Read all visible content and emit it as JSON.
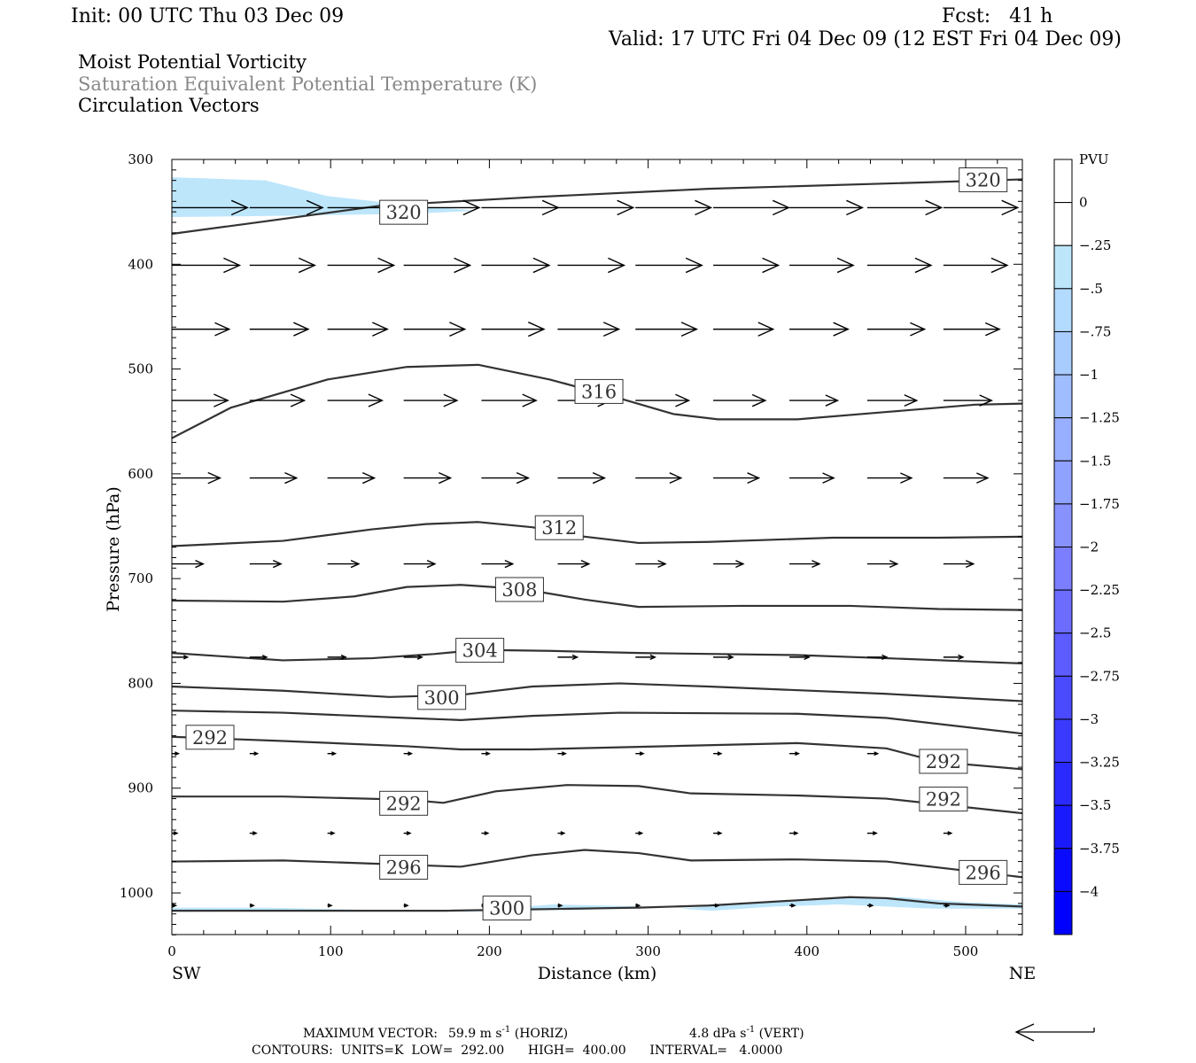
{
  "header": {
    "init": "Init: 00 UTC Thu 03 Dec 09",
    "fcst": "Fcst:   41 h",
    "valid": "Valid: 17 UTC Fri 04 Dec 09 (12 EST Fri 04 Dec 09)",
    "fields": [
      "Moist Potential Vorticity",
      "Saturation Equivalent Potential Temperature (K)",
      "Circulation Vectors"
    ],
    "field_colors": [
      "#000000",
      "#888888",
      "#000000"
    ]
  },
  "footer": {
    "max_vector_label": "MAXIMUM VECTOR:",
    "horiz": "59.9 m s",
    "horiz_suffix": " (HORIZ)",
    "vert": "4.8 dPa s",
    "vert_suffix": " (VERT)",
    "exp": "-1",
    "contours": "CONTOURS:  UNITS=K  LOW=  292.00      HIGH=  400.00      INTERVAL=   4.0000"
  },
  "chart_data": {
    "type": "cross-section",
    "xlabel": "Distance (km)",
    "ylabel": "Pressure (hPa)",
    "xlim": [
      0,
      536
    ],
    "ylim": [
      1040,
      300
    ],
    "x_ticks": [
      0,
      100,
      200,
      300,
      400,
      500
    ],
    "y_ticks": [
      300,
      400,
      500,
      600,
      700,
      800,
      900,
      1000
    ],
    "x_end_labels": {
      "left": "SW",
      "right": "NE"
    },
    "contour_color": "#333333",
    "contours": [
      {
        "value": 320,
        "labels": [
          [
            511,
            319
          ],
          [
            146,
            350
          ]
        ],
        "points": [
          [
            0,
            371
          ],
          [
            59,
            359
          ],
          [
            132,
            344
          ],
          [
            227,
            336
          ],
          [
            338,
            328
          ],
          [
            450,
            323
          ],
          [
            536,
            319
          ]
        ]
      },
      {
        "value": 316,
        "labels": [
          [
            269,
            521
          ]
        ],
        "points": [
          [
            0,
            566
          ],
          [
            37,
            537
          ],
          [
            98,
            510
          ],
          [
            148,
            498
          ],
          [
            193,
            496
          ],
          [
            238,
            510
          ],
          [
            282,
            528
          ],
          [
            316,
            543
          ],
          [
            344,
            548
          ],
          [
            394,
            548
          ],
          [
            450,
            541
          ],
          [
            506,
            534
          ],
          [
            536,
            533
          ]
        ]
      },
      {
        "value": 312,
        "labels": [
          [
            244,
            651
          ]
        ],
        "points": [
          [
            0,
            669
          ],
          [
            70,
            664
          ],
          [
            126,
            653
          ],
          [
            160,
            648
          ],
          [
            193,
            646
          ],
          [
            227,
            651
          ],
          [
            260,
            660
          ],
          [
            294,
            666
          ],
          [
            338,
            665
          ],
          [
            416,
            661
          ],
          [
            483,
            661
          ],
          [
            536,
            660
          ]
        ]
      },
      {
        "value": 308,
        "labels": [
          [
            219,
            710
          ]
        ],
        "points": [
          [
            0,
            721
          ],
          [
            70,
            722
          ],
          [
            115,
            717
          ],
          [
            148,
            708
          ],
          [
            182,
            706
          ],
          [
            221,
            710
          ],
          [
            260,
            720
          ],
          [
            294,
            727
          ],
          [
            360,
            726
          ],
          [
            427,
            726
          ],
          [
            483,
            729
          ],
          [
            536,
            730
          ]
        ]
      },
      {
        "value": 304,
        "labels": [
          [
            194,
            768
          ]
        ],
        "points": [
          [
            0,
            771
          ],
          [
            70,
            778
          ],
          [
            126,
            776
          ],
          [
            165,
            772
          ],
          [
            193,
            768
          ],
          [
            238,
            769
          ],
          [
            294,
            771
          ],
          [
            394,
            773
          ],
          [
            450,
            776
          ],
          [
            536,
            781
          ]
        ]
      },
      {
        "value": 300,
        "labels": [
          [
            170,
            813
          ]
        ],
        "points": [
          [
            0,
            803
          ],
          [
            70,
            807
          ],
          [
            137,
            813
          ],
          [
            182,
            811
          ],
          [
            227,
            803
          ],
          [
            282,
            800
          ],
          [
            338,
            803
          ],
          [
            450,
            810
          ],
          [
            536,
            817
          ]
        ]
      },
      {
        "value": 296,
        "labels": [],
        "points": [
          [
            0,
            826
          ],
          [
            70,
            828
          ],
          [
            148,
            833
          ],
          [
            182,
            835
          ],
          [
            227,
            831
          ],
          [
            282,
            828
          ],
          [
            394,
            829
          ],
          [
            450,
            833
          ],
          [
            536,
            848
          ]
        ]
      },
      {
        "value": 292,
        "labels": [
          [
            24,
            851
          ],
          [
            486,
            874
          ]
        ],
        "points": [
          [
            0,
            851
          ],
          [
            70,
            855
          ],
          [
            148,
            860
          ],
          [
            182,
            863
          ],
          [
            227,
            863
          ],
          [
            282,
            861
          ],
          [
            394,
            857
          ],
          [
            450,
            862
          ],
          [
            483,
            875
          ],
          [
            536,
            882
          ]
        ]
      },
      {
        "value": 292,
        "labels": [
          [
            146,
            914
          ],
          [
            486,
            910
          ]
        ],
        "points": [
          [
            0,
            908
          ],
          [
            70,
            908
          ],
          [
            148,
            911
          ],
          [
            171,
            914
          ],
          [
            204,
            903
          ],
          [
            249,
            897
          ],
          [
            294,
            898
          ],
          [
            327,
            905
          ],
          [
            394,
            907
          ],
          [
            450,
            910
          ],
          [
            536,
            924
          ]
        ]
      },
      {
        "value": 296,
        "labels": [
          [
            146,
            975
          ],
          [
            511,
            980
          ]
        ],
        "points": [
          [
            0,
            970
          ],
          [
            70,
            969
          ],
          [
            126,
            972
          ],
          [
            182,
            975
          ],
          [
            227,
            964
          ],
          [
            260,
            959
          ],
          [
            294,
            962
          ],
          [
            327,
            969
          ],
          [
            394,
            968
          ],
          [
            450,
            970
          ],
          [
            536,
            985
          ]
        ]
      },
      {
        "value": 300,
        "labels": [
          [
            211,
            1014
          ]
        ],
        "points": [
          [
            0,
            1017
          ],
          [
            171,
            1017
          ],
          [
            294,
            1014
          ],
          [
            338,
            1012
          ],
          [
            394,
            1007
          ],
          [
            427,
            1004
          ],
          [
            450,
            1005
          ],
          [
            483,
            1010
          ],
          [
            536,
            1013
          ]
        ]
      }
    ],
    "mpv_shading": [
      {
        "level": -0.25,
        "points": [
          [
            0,
            317
          ],
          [
            59,
            320
          ],
          [
            98,
            335
          ],
          [
            146,
            343
          ],
          [
            193,
            349
          ],
          [
            146,
            352
          ],
          [
            59,
            354
          ],
          [
            0,
            355
          ]
        ]
      },
      {
        "level": -0.25,
        "points": [
          [
            320,
            1015
          ],
          [
            380,
            1008
          ],
          [
            420,
            1004
          ],
          [
            460,
            1004
          ],
          [
            500,
            1009
          ],
          [
            536,
            1011
          ],
          [
            536,
            1015
          ],
          [
            480,
            1015
          ],
          [
            420,
            1011
          ],
          [
            380,
            1013
          ],
          [
            340,
            1017
          ]
        ]
      },
      {
        "level": -0.25,
        "points": [
          [
            180,
            1018
          ],
          [
            240,
            1011
          ],
          [
            300,
            1013
          ],
          [
            260,
            1016
          ]
        ]
      },
      {
        "level": -0.25,
        "points": [
          [
            0,
            1014
          ],
          [
            60,
            1014
          ],
          [
            150,
            1017
          ],
          [
            0,
            1018
          ]
        ]
      }
    ],
    "vector_columns_km": [
      0,
      49,
      98,
      146,
      195,
      243,
      292,
      341,
      389,
      438,
      486
    ],
    "vector_rows": [
      {
        "p": 346,
        "u": [
          58,
          56,
          57,
          58,
          59,
          58,
          58,
          58,
          56,
          57,
          57
        ]
      },
      {
        "p": 401,
        "u": [
          52,
          50,
          51,
          51,
          52,
          51,
          51,
          50,
          49,
          49,
          49
        ]
      },
      {
        "p": 462,
        "u": [
          44,
          45,
          46,
          47,
          48,
          47,
          47,
          46,
          45,
          44,
          43
        ]
      },
      {
        "p": 530,
        "u": [
          43,
          42,
          42,
          41,
          42,
          41,
          41,
          40,
          37,
          38,
          37
        ]
      },
      {
        "p": 604,
        "u": [
          37,
          36,
          36,
          36,
          36,
          36,
          35,
          35,
          34,
          34,
          34
        ]
      },
      {
        "p": 686,
        "u": [
          24,
          24,
          24,
          24,
          24,
          24,
          23,
          23,
          23,
          23,
          23
        ]
      },
      {
        "p": 775,
        "u": [
          12,
          13,
          14,
          14,
          14,
          15,
          15,
          15,
          15,
          15,
          15
        ]
      },
      {
        "p": 867,
        "u": [
          5,
          6,
          6,
          6,
          6,
          6,
          6,
          6,
          7,
          8,
          8
        ]
      },
      {
        "p": 943,
        "u": [
          4,
          5,
          5,
          5,
          5,
          5,
          5,
          6,
          6,
          7,
          6
        ]
      },
      {
        "p": 1012,
        "u": [
          3,
          3,
          3,
          3,
          3,
          3,
          3,
          4,
          4,
          4,
          4
        ]
      }
    ],
    "max_vector_ms": 59.9,
    "colorbar": {
      "title": "PVU",
      "labels": [
        "0",
        "-.25",
        "-.5",
        "-.75",
        "-1",
        "-1.25",
        "-1.5",
        "-1.75",
        "-2",
        "-2.25",
        "-2.5",
        "-2.75",
        "-3",
        "-3.25",
        "-3.5",
        "-3.75",
        "-4"
      ],
      "colors": [
        "#ffffff",
        "#ffffff",
        "#bde6fb",
        "#b3daff",
        "#a9ccff",
        "#a0beff",
        "#98afff",
        "#90a2ff",
        "#8892ff",
        "#7b7eff",
        "#6c6cff",
        "#5c5cff",
        "#4a4aff",
        "#3a3aff",
        "#2a2aff",
        "#1a1aff",
        "#0a0aff",
        "#0000ff"
      ]
    }
  }
}
